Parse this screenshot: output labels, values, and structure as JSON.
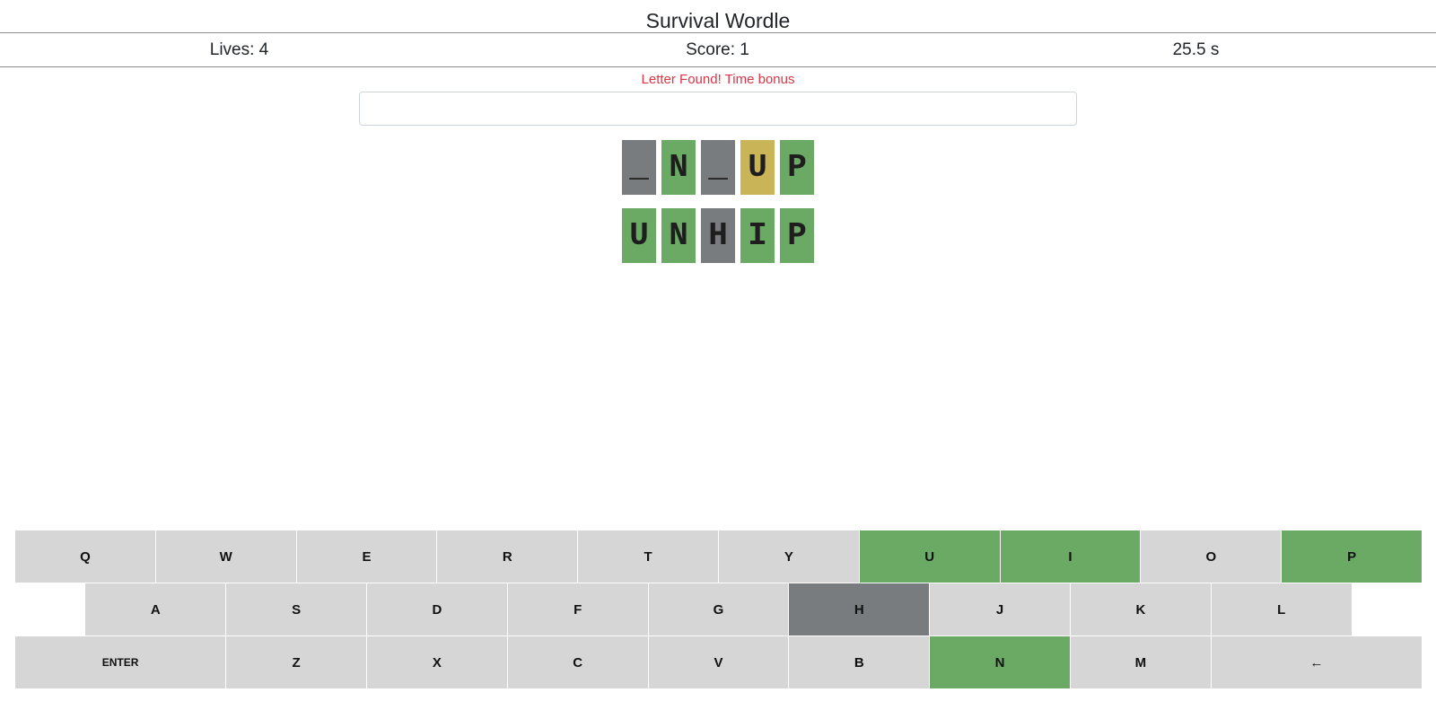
{
  "header": {
    "title": "Survival Wordle"
  },
  "stats": {
    "lives": "Lives: 4",
    "score": "Score: 1",
    "timer": "25.5 s"
  },
  "message": "Letter Found! Time bonus",
  "input": {
    "value": "",
    "placeholder": ""
  },
  "board": {
    "rows": [
      [
        {
          "letter": "_",
          "state": "absent"
        },
        {
          "letter": "N",
          "state": "correct"
        },
        {
          "letter": "_",
          "state": "absent"
        },
        {
          "letter": "U",
          "state": "present"
        },
        {
          "letter": "P",
          "state": "correct"
        }
      ],
      [
        {
          "letter": "U",
          "state": "correct"
        },
        {
          "letter": "N",
          "state": "correct"
        },
        {
          "letter": "H",
          "state": "absent"
        },
        {
          "letter": "I",
          "state": "correct"
        },
        {
          "letter": "P",
          "state": "correct"
        }
      ]
    ]
  },
  "colors": {
    "correct": "#6aaa64",
    "present": "#c9b458",
    "absent": "#787c7e",
    "key_default": "#d6d6d6",
    "message": "#dc3545"
  },
  "keyboard": {
    "rows": [
      [
        {
          "label": "Q",
          "state": "default"
        },
        {
          "label": "W",
          "state": "default"
        },
        {
          "label": "E",
          "state": "default"
        },
        {
          "label": "R",
          "state": "default"
        },
        {
          "label": "T",
          "state": "default"
        },
        {
          "label": "Y",
          "state": "default"
        },
        {
          "label": "U",
          "state": "correct"
        },
        {
          "label": "I",
          "state": "correct"
        },
        {
          "label": "O",
          "state": "default"
        },
        {
          "label": "P",
          "state": "correct"
        }
      ],
      [
        {
          "label": "A",
          "state": "default"
        },
        {
          "label": "S",
          "state": "default"
        },
        {
          "label": "D",
          "state": "default"
        },
        {
          "label": "F",
          "state": "default"
        },
        {
          "label": "G",
          "state": "default"
        },
        {
          "label": "H",
          "state": "absent"
        },
        {
          "label": "J",
          "state": "default"
        },
        {
          "label": "K",
          "state": "default"
        },
        {
          "label": "L",
          "state": "default"
        }
      ],
      [
        {
          "label": "ENTER",
          "state": "default"
        },
        {
          "label": "Z",
          "state": "default"
        },
        {
          "label": "X",
          "state": "default"
        },
        {
          "label": "C",
          "state": "default"
        },
        {
          "label": "V",
          "state": "default"
        },
        {
          "label": "B",
          "state": "default"
        },
        {
          "label": "N",
          "state": "correct"
        },
        {
          "label": "M",
          "state": "default"
        },
        {
          "label": "←",
          "state": "default"
        }
      ]
    ]
  }
}
